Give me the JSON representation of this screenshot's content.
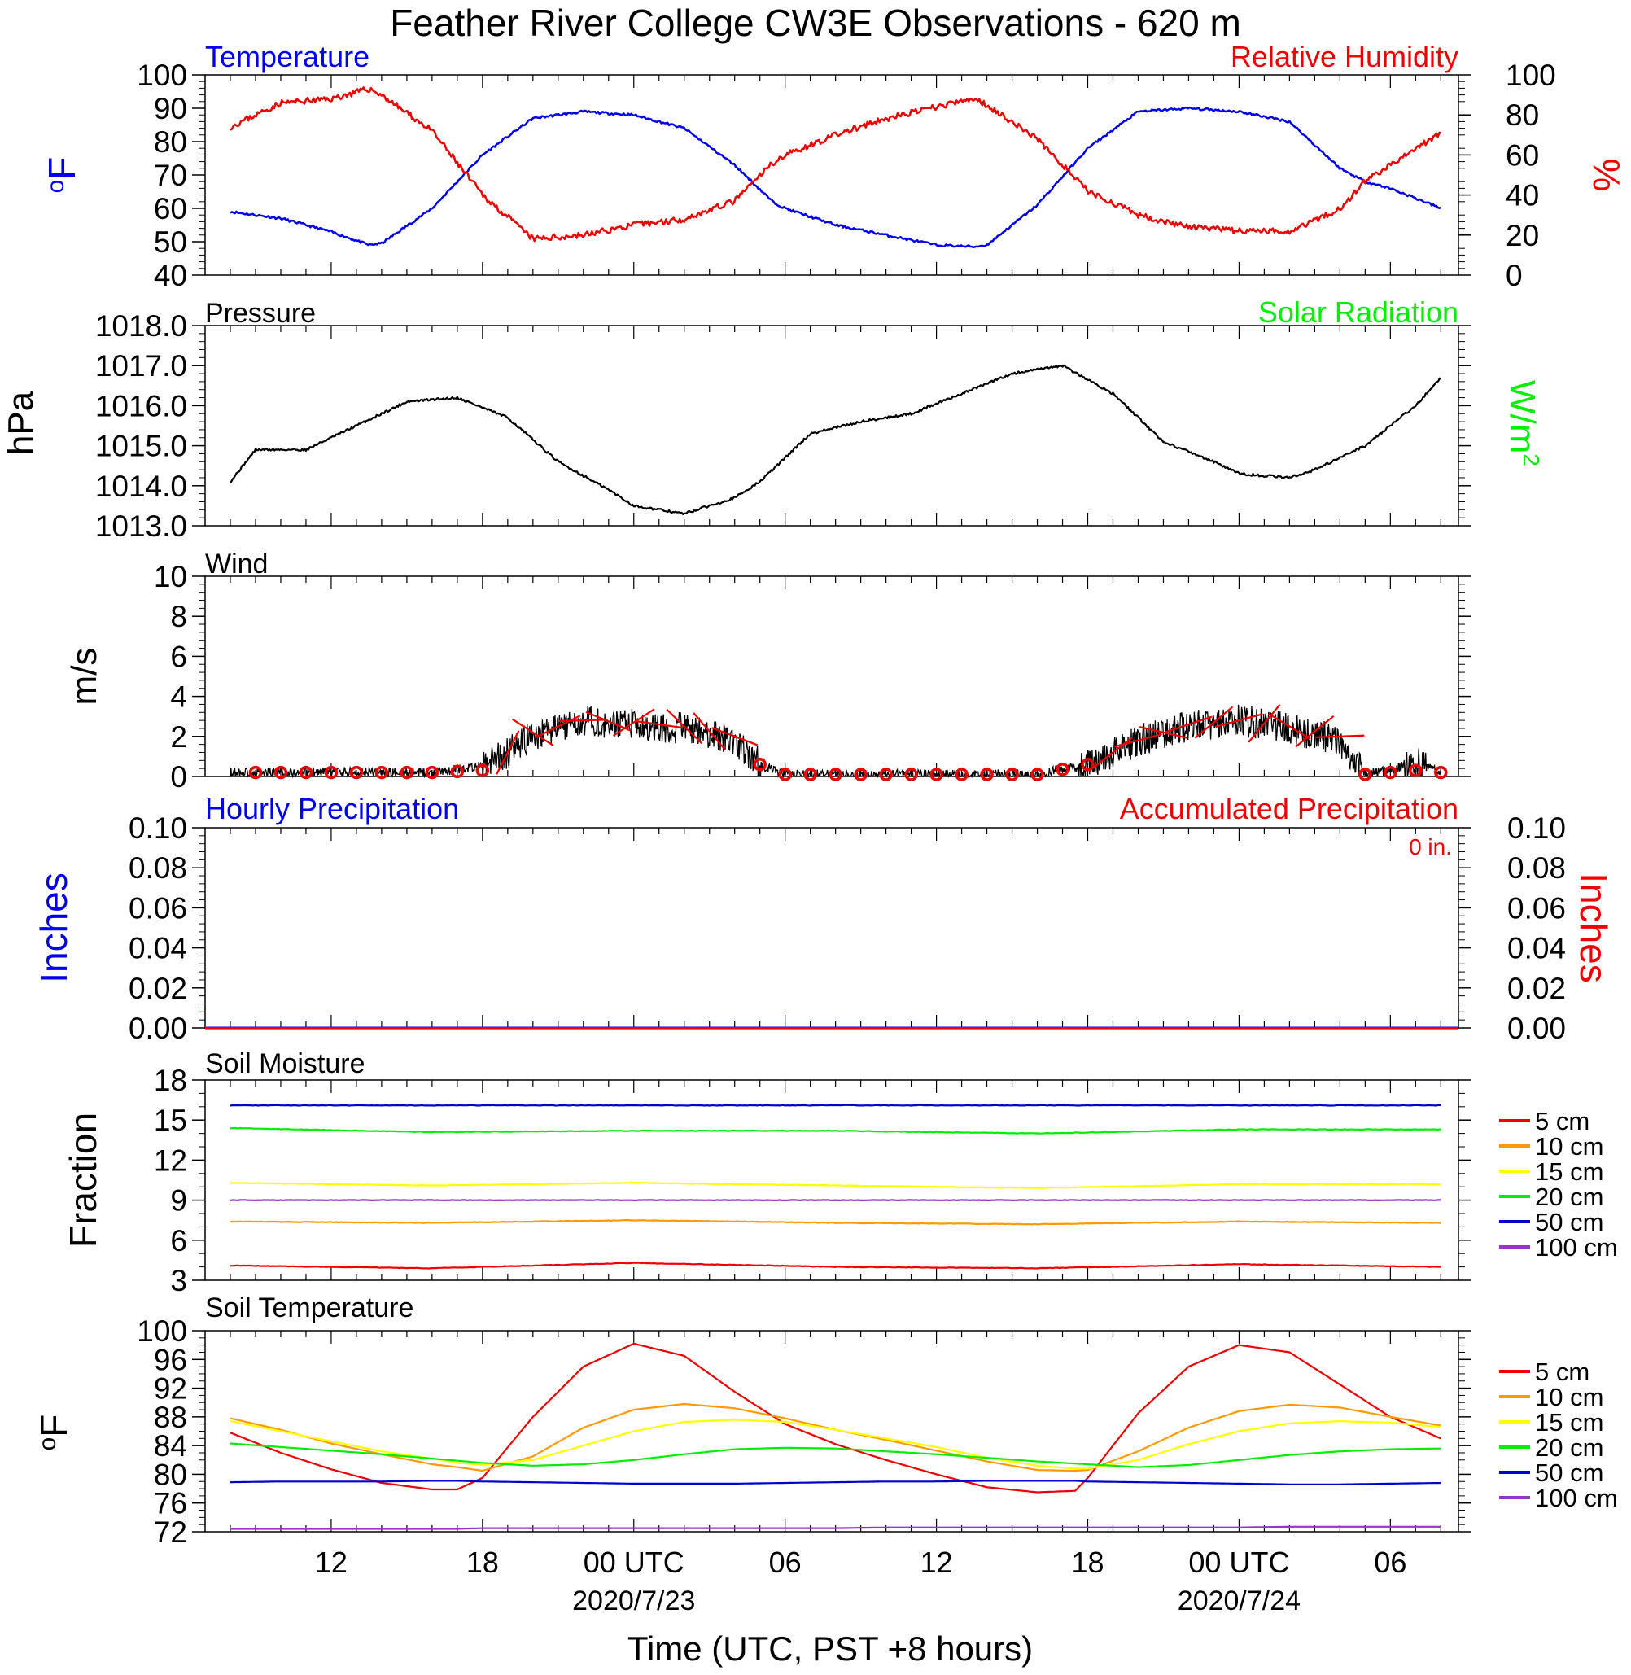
{
  "title": "Feather River College CW3E Observations - 620 m",
  "xaxis": {
    "label": "Time (UTC, PST +8 hours)",
    "ticks": [
      "12",
      "18",
      "00 UTC",
      "06",
      "12",
      "18",
      "00 UTC",
      "06"
    ],
    "dates": [
      "2020/7/23",
      "2020/7/24"
    ]
  },
  "colors": {
    "blue": "#0000ee",
    "red": "#ee0000",
    "green": "#00ee00",
    "orange": "#ff9900",
    "yellow": "#ffff00",
    "navy": "#0000cc",
    "purple": "#9933cc",
    "black": "#000000"
  },
  "chart_data": [
    {
      "type": "line",
      "title_left": "Temperature",
      "title_right": "Relative Humidity",
      "ylabel_left": "oF",
      "ylabel_right": "%",
      "ylim_left": [
        40,
        100
      ],
      "ylim_right": [
        0,
        100
      ],
      "yticks_left": [
        "100",
        "90",
        "80",
        "70",
        "60",
        "50",
        "40"
      ],
      "yticks_right": [
        "100",
        "80",
        "60",
        "40",
        "20",
        "0"
      ],
      "x_hours": [
        8,
        10,
        12,
        13.5,
        14,
        16,
        18,
        20,
        22,
        24,
        26,
        28,
        29.5,
        30,
        32,
        34,
        36,
        37.5,
        38,
        40,
        42,
        44,
        46,
        48,
        50,
        52,
        53,
        54,
        56
      ],
      "series": [
        {
          "name": "Temperature",
          "axis": "left",
          "values": [
            59,
            57,
            53,
            49,
            49.5,
            60,
            76,
            87,
            89,
            88,
            84,
            73,
            62,
            60,
            55,
            52,
            49,
            48.5,
            49,
            61,
            78,
            89,
            90,
            89,
            86,
            72,
            68,
            66,
            60
          ]
        },
        {
          "name": "Relative Humidity",
          "axis": "right",
          "values": [
            74,
            86,
            88,
            93,
            90,
            72,
            40,
            18,
            20,
            25,
            28,
            37,
            56,
            60,
            70,
            78,
            84,
            88,
            85,
            68,
            42,
            30,
            24,
            22,
            22,
            33,
            47,
            55,
            71
          ]
        }
      ]
    },
    {
      "type": "line",
      "title_left": "Pressure",
      "title_right": "Solar Radiation",
      "ylabel_left": "hPa",
      "ylabel_right": "W/m2",
      "ylim_left": [
        1013,
        1018
      ],
      "yticks_left": [
        "1018.0",
        "1017.0",
        "1016.0",
        "1015.0",
        "1014.0",
        "1013.0"
      ],
      "x_hours": [
        8,
        9,
        11,
        13,
        15,
        17,
        19,
        21,
        23,
        24,
        26,
        28,
        29,
        31,
        33,
        35,
        37,
        39,
        41,
        43,
        45,
        47,
        48,
        50,
        51,
        53,
        55,
        56
      ],
      "series": [
        {
          "name": "Pressure",
          "values": [
            1014.1,
            1014.9,
            1014.9,
            1015.5,
            1016.1,
            1016.2,
            1015.7,
            1014.6,
            1013.9,
            1013.5,
            1013.3,
            1013.7,
            1014.1,
            1015.3,
            1015.6,
            1015.8,
            1016.3,
            1016.8,
            1017.0,
            1016.3,
            1015.1,
            1014.6,
            1014.3,
            1014.2,
            1014.4,
            1015.0,
            1016.0,
            1016.7
          ]
        }
      ]
    },
    {
      "type": "line",
      "title": "Wind",
      "ylabel": "m/s",
      "ylim": [
        0,
        10
      ],
      "yticks": [
        "10",
        "8",
        "6",
        "4",
        "2",
        "0"
      ],
      "x_hours": [
        8,
        16,
        18,
        19,
        20,
        22,
        24,
        26,
        28,
        29,
        30,
        40,
        42,
        44,
        46,
        48,
        50,
        52,
        53,
        54,
        55,
        56
      ],
      "series": [
        {
          "name": "Wind speed",
          "values": [
            0.2,
            0.2,
            0.5,
            1.2,
            2.0,
            2.8,
            2.6,
            2.4,
            1.8,
            0.6,
            0.1,
            0.1,
            0.6,
            1.8,
            2.5,
            2.8,
            2.4,
            1.8,
            0.2,
            0.3,
            0.7,
            0.2
          ]
        },
        {
          "name": "Hourly mean",
          "values": [
            0.2,
            0.2,
            0.3,
            1.2,
            2.2,
            2.8,
            2.7,
            2.5,
            2.0,
            0.6,
            0.1,
            0.1,
            0.6,
            1.8,
            2.6,
            2.8,
            2.5,
            2.0,
            0.1,
            0.2,
            0.3,
            0.2
          ]
        }
      ]
    },
    {
      "type": "line",
      "title_left": "Hourly Precipitation",
      "title_right": "Accumulated Precipitation",
      "total": "0 in.",
      "ylabel_left": "Inches",
      "ylabel_right": "Inches",
      "ylim": [
        0,
        0.1
      ],
      "yticks": [
        "0.10",
        "0.08",
        "0.06",
        "0.04",
        "0.02",
        "0.00"
      ],
      "series": [
        {
          "name": "Hourly Precipitation",
          "values": [
            0,
            0
          ]
        },
        {
          "name": "Accumulated Precipitation",
          "values": [
            0,
            0
          ]
        }
      ]
    },
    {
      "type": "line",
      "title": "Soil Moisture",
      "ylabel": "Fraction",
      "ylim": [
        3,
        18
      ],
      "yticks": [
        "18",
        "15",
        "12",
        "9",
        "6",
        "3"
      ],
      "legend": [
        "5 cm",
        "10 cm",
        "15 cm",
        "20 cm",
        "50 cm",
        "100 cm"
      ],
      "x_hours": [
        8,
        16,
        24,
        32,
        40,
        48,
        56
      ],
      "series": [
        {
          "name": "5 cm",
          "values": [
            4.1,
            3.9,
            4.3,
            4.0,
            3.9,
            4.2,
            4.0
          ]
        },
        {
          "name": "10 cm",
          "values": [
            7.4,
            7.3,
            7.5,
            7.3,
            7.2,
            7.4,
            7.3
          ]
        },
        {
          "name": "15 cm",
          "values": [
            10.3,
            10.1,
            10.3,
            10.1,
            9.9,
            10.2,
            10.2
          ]
        },
        {
          "name": "20 cm",
          "values": [
            14.4,
            14.1,
            14.2,
            14.2,
            14.0,
            14.3,
            14.3
          ]
        },
        {
          "name": "50 cm",
          "values": [
            16.1,
            16.1,
            16.1,
            16.1,
            16.1,
            16.1,
            16.1
          ]
        },
        {
          "name": "100 cm",
          "values": [
            9.0,
            9.0,
            9.0,
            9.0,
            9.0,
            9.0,
            9.0
          ]
        }
      ]
    },
    {
      "type": "line",
      "title": "Soil Temperature",
      "ylabel": "oF",
      "ylim": [
        72,
        100
      ],
      "yticks": [
        "100",
        "96",
        "92",
        "88",
        "84",
        "80",
        "76",
        "72"
      ],
      "legend": [
        "5 cm",
        "10 cm",
        "15 cm",
        "20 cm",
        "50 cm",
        "100 cm"
      ],
      "x_hours": [
        8,
        10,
        12,
        14,
        16,
        17,
        18,
        20,
        22,
        24,
        26,
        28,
        30,
        32,
        34,
        36,
        38,
        40,
        41.5,
        42,
        44,
        46,
        48,
        50,
        52,
        54,
        56
      ],
      "series": [
        {
          "name": "5 cm",
          "values": [
            85.8,
            83.0,
            80.7,
            78.8,
            77.9,
            77.9,
            79.5,
            88.0,
            95.0,
            98.2,
            96.5,
            91.5,
            87.0,
            84.2,
            82.0,
            80.0,
            78.2,
            77.5,
            77.7,
            79.5,
            88.5,
            95.0,
            98.0,
            97.0,
            92.5,
            88.0,
            85.0
          ]
        },
        {
          "name": "10 cm",
          "values": [
            87.8,
            86.2,
            84.3,
            82.8,
            81.4,
            81.0,
            80.5,
            82.5,
            86.5,
            89.0,
            89.8,
            89.2,
            87.8,
            86.2,
            84.8,
            83.3,
            81.8,
            80.6,
            80.5,
            80.6,
            83.2,
            86.5,
            88.8,
            89.7,
            89.3,
            88.0,
            86.8
          ]
        },
        {
          "name": "15 cm",
          "values": [
            87.4,
            86.0,
            84.6,
            83.2,
            82.2,
            81.6,
            81.3,
            82.0,
            84.0,
            86.0,
            87.3,
            87.6,
            87.3,
            86.2,
            85.0,
            83.8,
            82.3,
            81.2,
            80.8,
            80.8,
            82.0,
            84.2,
            86.0,
            87.1,
            87.4,
            87.2,
            86.6
          ]
        },
        {
          "name": "20 cm",
          "values": [
            84.3,
            83.8,
            83.3,
            82.8,
            82.2,
            81.9,
            81.6,
            81.2,
            81.4,
            82.0,
            82.8,
            83.5,
            83.7,
            83.6,
            83.2,
            82.8,
            82.3,
            81.8,
            81.5,
            81.4,
            81.0,
            81.3,
            82.0,
            82.7,
            83.2,
            83.5,
            83.6
          ]
        },
        {
          "name": "50 cm",
          "values": [
            78.9,
            79.0,
            79.0,
            79.0,
            79.1,
            79.1,
            79.0,
            78.9,
            78.8,
            78.7,
            78.7,
            78.7,
            78.8,
            78.9,
            79.0,
            79.0,
            79.1,
            79.1,
            79.1,
            79.0,
            78.9,
            78.8,
            78.7,
            78.6,
            78.6,
            78.7,
            78.8
          ]
        },
        {
          "name": "100 cm",
          "values": [
            72.4,
            72.4,
            72.4,
            72.4,
            72.4,
            72.4,
            72.5,
            72.5,
            72.5,
            72.5,
            72.5,
            72.5,
            72.5,
            72.5,
            72.6,
            72.6,
            72.6,
            72.6,
            72.6,
            72.6,
            72.6,
            72.6,
            72.6,
            72.7,
            72.7,
            72.7,
            72.7
          ]
        }
      ]
    }
  ]
}
